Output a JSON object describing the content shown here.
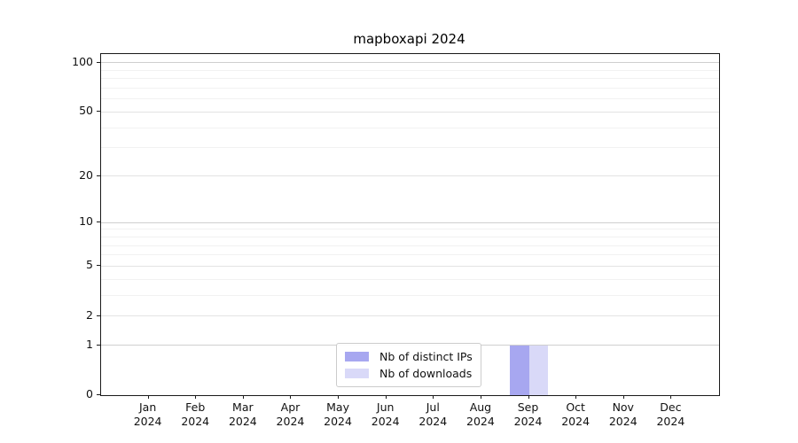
{
  "title": "mapboxapi 2024",
  "chart_data": {
    "type": "bar",
    "title": "mapboxapi 2024",
    "xlabel": "",
    "ylabel": "",
    "yscale": "log1p",
    "grid": "horizontal, major and minor",
    "legend_position": "lower center inside axes",
    "categories": [
      "Jan 2024",
      "Feb 2024",
      "Mar 2024",
      "Apr 2024",
      "May 2024",
      "Jun 2024",
      "Jul 2024",
      "Aug 2024",
      "Sep 2024",
      "Oct 2024",
      "Nov 2024",
      "Dec 2024"
    ],
    "y_ticks": [
      0,
      1,
      2,
      5,
      10,
      20,
      50,
      100
    ],
    "y_decade_ticks": [
      1,
      10,
      100
    ],
    "y_minor_ticks": [
      3,
      4,
      6,
      7,
      8,
      9,
      30,
      40,
      60,
      70,
      80,
      90
    ],
    "ylim": [
      0,
      113
    ],
    "series": [
      {
        "name": "Nb of distinct IPs",
        "color": "#a7a7f0",
        "values": [
          0,
          0,
          0,
          0,
          0,
          0,
          0,
          0,
          1,
          0,
          0,
          0
        ]
      },
      {
        "name": "Nb of downloads",
        "color": "#d9d9f8",
        "values": [
          0,
          0,
          0,
          0,
          0,
          0,
          0,
          0,
          1,
          0,
          0,
          0
        ]
      }
    ]
  },
  "colors": {
    "background": "#ffffff",
    "spine": "#1a1a1a",
    "grid_decade": "#cfcfcf",
    "grid_labeled": "#e3e3e3",
    "grid_minor": "#f1f1f1",
    "text": "#111111"
  }
}
